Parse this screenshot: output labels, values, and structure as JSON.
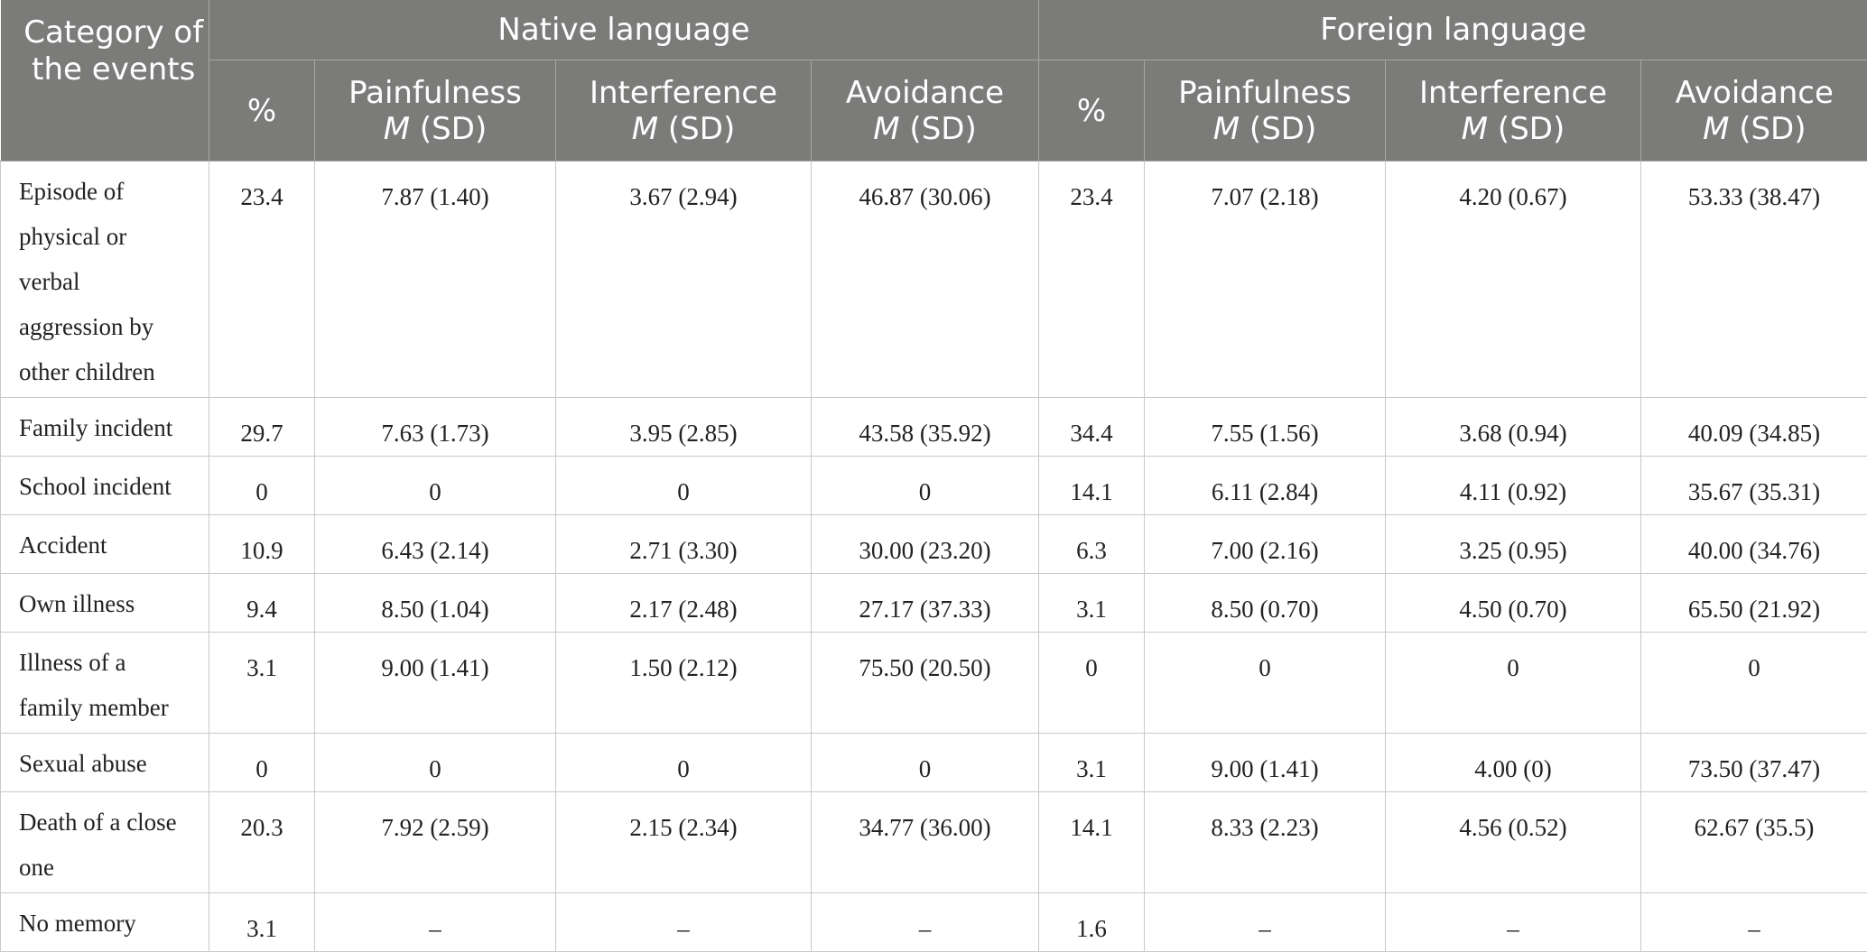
{
  "header": {
    "category": "Category of the events",
    "groups": [
      "Native language",
      "Foreign language"
    ],
    "subcols": [
      {
        "main": "%",
        "stat": ""
      },
      {
        "main": "Painfulness",
        "stat": "M",
        "stat_rest": " (SD)"
      },
      {
        "main": "Interference",
        "stat": "M",
        "stat_rest": " (SD)"
      },
      {
        "main": "Avoidance",
        "stat": "M",
        "stat_rest": " (SD)"
      }
    ]
  },
  "rows": [
    {
      "category": "Episode of physical or verbal aggression by other children",
      "cells": [
        "23.4",
        "7.87 (1.40)",
        "3.67 (2.94)",
        "46.87 (30.06)",
        "23.4",
        "7.07 (2.18)",
        "4.20 (0.67)",
        "53.33 (38.47)"
      ]
    },
    {
      "category": "Family incident",
      "cells": [
        "29.7",
        "7.63 (1.73)",
        "3.95 (2.85)",
        "43.58 (35.92)",
        "34.4",
        "7.55 (1.56)",
        "3.68 (0.94)",
        "40.09 (34.85)"
      ]
    },
    {
      "category": "School incident",
      "cells": [
        "0",
        "0",
        "0",
        "0",
        "14.1",
        "6.11 (2.84)",
        "4.11 (0.92)",
        "35.67 (35.31)"
      ]
    },
    {
      "category": "Accident",
      "cells": [
        "10.9",
        "6.43 (2.14)",
        "2.71 (3.30)",
        "30.00 (23.20)",
        "6.3",
        "7.00 (2.16)",
        "3.25 (0.95)",
        "40.00 (34.76)"
      ]
    },
    {
      "category": "Own illness",
      "cells": [
        "9.4",
        "8.50 (1.04)",
        "2.17 (2.48)",
        "27.17 (37.33)",
        "3.1",
        "8.50 (0.70)",
        "4.50 (0.70)",
        "65.50 (21.92)"
      ]
    },
    {
      "category": "Illness of a family member",
      "cells": [
        "3.1",
        "9.00 (1.41)",
        "1.50 (2.12)",
        "75.50 (20.50)",
        "0",
        "0",
        "0",
        "0"
      ]
    },
    {
      "category": "Sexual abuse",
      "cells": [
        "0",
        "0",
        "0",
        "0",
        "3.1",
        "9.00 (1.41)",
        "4.00 (0)",
        "73.50 (37.47)"
      ]
    },
    {
      "category": "Death of a close one",
      "cells": [
        "20.3",
        "7.92 (2.59)",
        "2.15 (2.34)",
        "34.77 (36.00)",
        "14.1",
        "8.33 (2.23)",
        "4.56 (0.52)",
        "62.67 (35.5)"
      ]
    },
    {
      "category": "No memory",
      "cells": [
        "3.1",
        "–",
        "–",
        "–",
        "1.6",
        "–",
        "–",
        "–"
      ]
    }
  ]
}
